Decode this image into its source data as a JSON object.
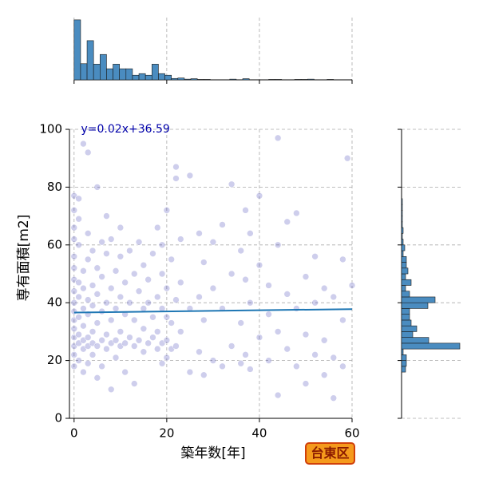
{
  "chart_data": [
    {
      "type": "scatter",
      "x": [
        0,
        0,
        0,
        0,
        0,
        0,
        0,
        0,
        0,
        0,
        0,
        0,
        0,
        0,
        0,
        0,
        1,
        1,
        1,
        1,
        1,
        1,
        1,
        1,
        1,
        2,
        2,
        2,
        2,
        2,
        2,
        2,
        2,
        3,
        3,
        3,
        3,
        3,
        3,
        3,
        3,
        4,
        4,
        4,
        4,
        4,
        4,
        5,
        5,
        5,
        5,
        5,
        5,
        6,
        6,
        6,
        6,
        6,
        7,
        7,
        7,
        7,
        7,
        8,
        8,
        8,
        8,
        8,
        9,
        9,
        9,
        9,
        10,
        10,
        10,
        10,
        10,
        11,
        11,
        11,
        11,
        12,
        12,
        12,
        13,
        13,
        13,
        13,
        14,
        14,
        14,
        15,
        15,
        15,
        15,
        16,
        16,
        16,
        17,
        17,
        17,
        18,
        18,
        18,
        18,
        19,
        19,
        19,
        19,
        19,
        20,
        20,
        20,
        20,
        20,
        21,
        21,
        21,
        22,
        22,
        22,
        22,
        23,
        23,
        23,
        25,
        25,
        25,
        27,
        27,
        27,
        28,
        28,
        28,
        30,
        30,
        30,
        32,
        32,
        32,
        34,
        34,
        34,
        36,
        36,
        36,
        37,
        37,
        37,
        38,
        38,
        38,
        40,
        40,
        40,
        42,
        42,
        42,
        44,
        44,
        44,
        44,
        46,
        46,
        46,
        48,
        48,
        48,
        50,
        50,
        50,
        52,
        52,
        52,
        54,
        54,
        54,
        56,
        56,
        56,
        58,
        58,
        58,
        59,
        60
      ],
      "y": [
        18,
        22,
        25,
        28,
        31,
        34,
        37,
        40,
        44,
        48,
        52,
        56,
        62,
        66,
        72,
        77,
        20,
        26,
        29,
        35,
        42,
        47,
        60,
        69,
        76,
        16,
        24,
        27,
        32,
        38,
        45,
        51,
        95,
        19,
        25,
        28,
        36,
        41,
        55,
        64,
        92,
        22,
        26,
        30,
        39,
        46,
        58,
        14,
        25,
        33,
        43,
        52,
        80,
        18,
        27,
        37,
        49,
        61,
        24,
        29,
        40,
        57,
        70,
        10,
        26,
        34,
        45,
        62,
        21,
        27,
        38,
        51,
        25,
        30,
        42,
        56,
        66,
        16,
        26,
        36,
        47,
        28,
        40,
        58,
        12,
        25,
        34,
        50,
        27,
        44,
        61,
        23,
        31,
        38,
        53,
        26,
        40,
        48,
        28,
        35,
        57,
        24,
        30,
        42,
        66,
        19,
        26,
        38,
        50,
        60,
        21,
        27,
        35,
        45,
        72,
        24,
        33,
        55,
        25,
        41,
        87,
        83,
        30,
        47,
        62,
        16,
        38,
        84,
        23,
        42,
        64,
        15,
        34,
        54,
        20,
        45,
        61,
        18,
        38,
        67,
        25,
        50,
        81,
        19,
        33,
        58,
        22,
        48,
        72,
        17,
        40,
        64,
        28,
        53,
        77,
        20,
        36,
        46,
        8,
        30,
        60,
        97,
        24,
        43,
        68,
        18,
        38,
        71,
        12,
        29,
        49,
        22,
        40,
        56,
        15,
        27,
        45,
        7,
        21,
        42,
        18,
        34,
        55,
        90,
        46
      ],
      "color": "#2222aa",
      "fit": {
        "label": "y=0.02x+36.59",
        "slope": 0.02,
        "intercept": 36.59,
        "color": "#1f77b4"
      },
      "xlabel": "築年数[年]",
      "ylabel": "専有面積[m2]",
      "xlim": [
        -1,
        60
      ],
      "ylim": [
        0,
        100
      ],
      "xticks": [
        0,
        20,
        40,
        60
      ],
      "yticks": [
        0,
        20,
        40,
        60,
        80,
        100
      ],
      "grid": true,
      "annotation": "台東区"
    },
    {
      "type": "histogram",
      "orientation": "vertical",
      "color": "#4a8cc0",
      "bins": [
        0,
        1.4,
        2.8,
        4.2,
        5.6,
        7,
        8.4,
        9.8,
        11.2,
        12.6,
        14,
        15.4,
        16.8,
        18.2,
        19.6,
        21,
        22.4,
        23.8,
        25.2,
        26.6,
        28,
        29.4,
        30.8,
        32.2,
        33.6,
        35,
        36.4,
        37.8,
        39.2,
        40.6,
        42,
        43.4,
        44.8,
        46.2,
        47.6,
        49,
        50.4,
        51.8,
        53.2,
        54.6,
        56,
        57.4
      ],
      "counts": [
        260,
        70,
        170,
        68,
        110,
        48,
        68,
        48,
        48,
        20,
        27,
        20,
        68,
        27,
        20,
        6,
        8,
        3,
        5,
        2,
        2,
        0,
        0,
        0,
        3,
        0,
        5,
        0,
        0,
        0,
        2,
        2,
        0,
        0,
        2,
        2,
        3,
        0,
        0,
        2,
        0
      ],
      "countlim": [
        0,
        270
      ]
    },
    {
      "type": "histogram",
      "orientation": "horizontal",
      "color": "#4a8cc0",
      "bins": [
        16,
        18,
        20,
        22,
        24,
        26,
        28,
        30,
        32,
        34,
        36,
        38,
        40,
        42,
        44,
        46,
        48,
        50,
        52,
        54,
        56,
        58,
        60,
        62,
        64,
        66,
        68,
        70,
        72,
        74,
        76
      ],
      "counts": [
        5,
        6,
        6,
        2,
        73,
        34,
        14,
        19,
        12,
        10,
        10,
        33,
        42,
        10,
        5,
        12,
        5,
        8,
        6,
        6,
        2,
        4,
        2,
        1,
        2,
        1,
        1,
        1,
        1,
        1
      ],
      "countlim": [
        0,
        75
      ]
    }
  ]
}
